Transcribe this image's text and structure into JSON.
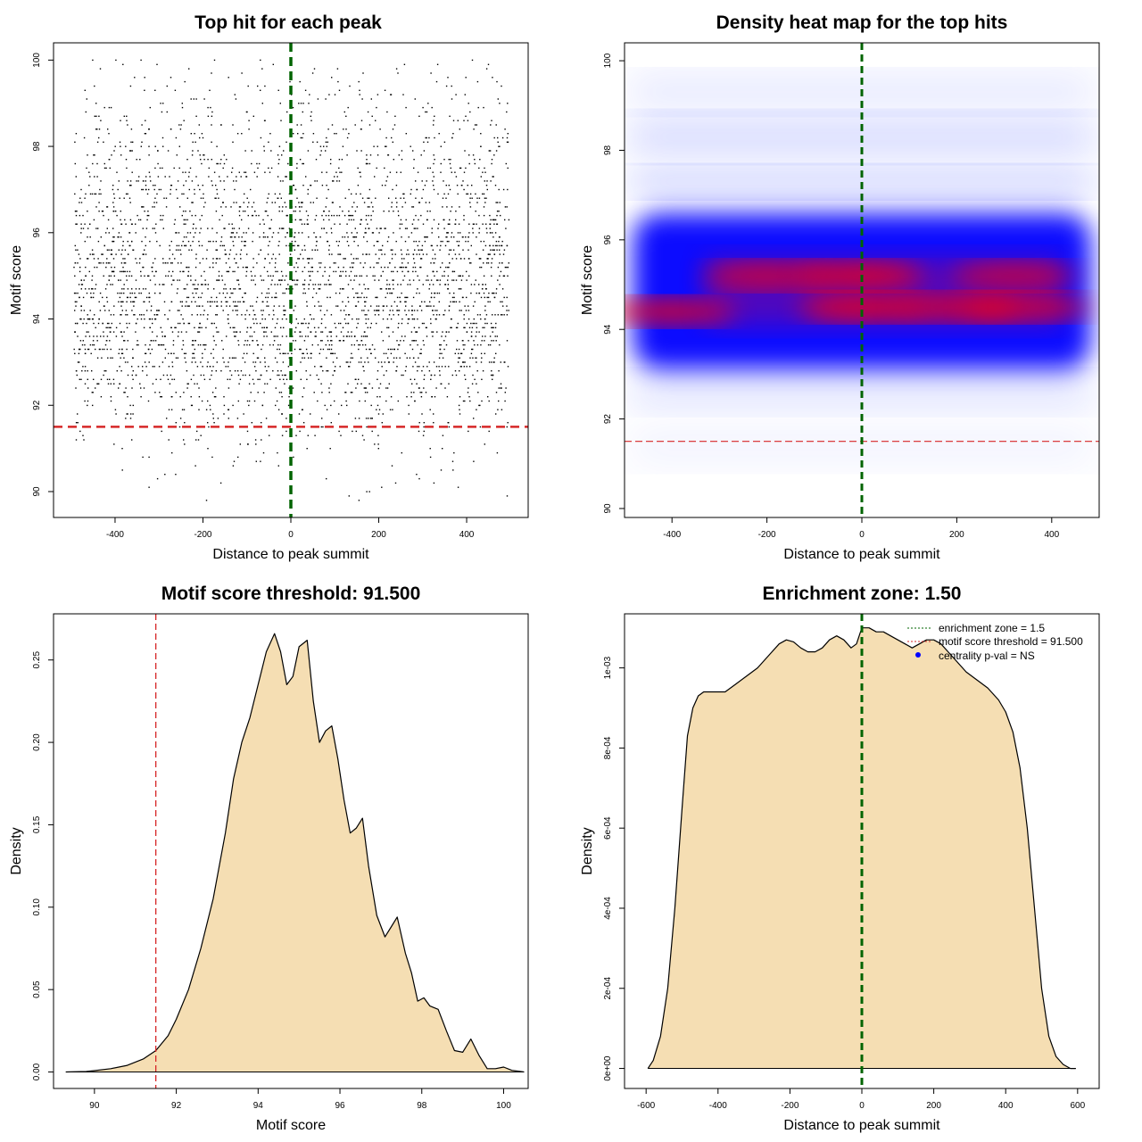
{
  "chart_data": [
    {
      "id": "top-hits",
      "type": "scatter",
      "title": "Top hit for each peak",
      "xlabel": "Distance to peak summit",
      "ylabel": "Motif score",
      "xlim": [
        -540,
        540
      ],
      "ylim": [
        89.4,
        100.4
      ],
      "xticks": [
        -400,
        -200,
        0,
        200,
        400
      ],
      "yticks": [
        90,
        92,
        94,
        96,
        98,
        100
      ],
      "points_description_range": {
        "x": [
          -495,
          495
        ],
        "y": [
          89.8,
          100.0
        ]
      },
      "score_density_profile": {
        "x": [
          89.8,
          90.5,
          91,
          91.5,
          92,
          92.5,
          93,
          93.5,
          94,
          94.5,
          95,
          95.5,
          96,
          96.5,
          97,
          97.5,
          98,
          98.5,
          99,
          99.5,
          100
        ],
        "weight": [
          0.03,
          0.05,
          0.1,
          0.22,
          0.35,
          0.55,
          0.8,
          0.95,
          1.0,
          1.0,
          1.0,
          0.95,
          0.85,
          0.7,
          0.55,
          0.45,
          0.35,
          0.28,
          0.2,
          0.12,
          0.08
        ]
      },
      "ref_lines": {
        "vertical_x": 0,
        "vertical_color": "#006400",
        "horizontal_y": 91.5,
        "horizontal_color": "#d62728"
      }
    },
    {
      "id": "density-heatmap",
      "type": "heatmap",
      "title": "Density heat map for the top hits",
      "xlabel": "Distance to peak summit",
      "ylabel": "Motif score",
      "xlim": [
        -500,
        500
      ],
      "ylim": [
        89.8,
        100.4
      ],
      "xticks": [
        -400,
        -200,
        0,
        200,
        400
      ],
      "yticks": [
        90,
        92,
        94,
        96,
        98,
        100
      ],
      "color_scale": [
        "#ffffff",
        "#0000ff",
        "#ff0000"
      ],
      "hotspots": [
        {
          "x": -400,
          "y": 94.4,
          "intensity": 0.85
        },
        {
          "x": -200,
          "y": 95.2,
          "intensity": 0.8
        },
        {
          "x": 0,
          "y": 95.2,
          "intensity": 0.95
        },
        {
          "x": 0,
          "y": 94.5,
          "intensity": 0.95
        },
        {
          "x": 200,
          "y": 94.5,
          "intensity": 0.85
        },
        {
          "x": 320,
          "y": 95.2,
          "intensity": 0.75
        },
        {
          "x": 350,
          "y": 94.5,
          "intensity": 0.8
        }
      ],
      "ref_lines": {
        "vertical_x": 0,
        "vertical_color": "#006400",
        "horizontal_y": 91.5,
        "horizontal_color": "#d62728"
      }
    },
    {
      "id": "score-density",
      "type": "area",
      "title": "Motif score threshold: 91.500",
      "xlabel": "Motif score",
      "ylabel": "Density",
      "xlim": [
        89,
        100.6
      ],
      "ylim": [
        -0.01,
        0.278
      ],
      "xticks": [
        90,
        92,
        94,
        96,
        98,
        100
      ],
      "yticks": [
        0,
        0.05,
        0.1,
        0.15,
        0.2,
        0.25
      ],
      "ytick_labels": [
        "0.00",
        "0.05",
        "0.10",
        "0.15",
        "0.20",
        "0.25"
      ],
      "x": [
        89.3,
        89.8,
        90.0,
        90.4,
        90.8,
        91.2,
        91.5,
        91.8,
        92.0,
        92.3,
        92.6,
        92.9,
        93.2,
        93.4,
        93.6,
        93.8,
        94.0,
        94.2,
        94.4,
        94.55,
        94.7,
        94.85,
        95.0,
        95.2,
        95.35,
        95.5,
        95.65,
        95.8,
        95.95,
        96.1,
        96.25,
        96.4,
        96.55,
        96.7,
        96.9,
        97.1,
        97.25,
        97.4,
        97.6,
        97.75,
        97.9,
        98.05,
        98.2,
        98.4,
        98.6,
        98.8,
        99.0,
        99.2,
        99.4,
        99.6,
        99.8,
        100.0,
        100.2,
        100.5
      ],
      "y": [
        0.0,
        0.0003,
        0.0008,
        0.002,
        0.004,
        0.008,
        0.013,
        0.022,
        0.032,
        0.05,
        0.075,
        0.105,
        0.145,
        0.178,
        0.2,
        0.215,
        0.235,
        0.255,
        0.266,
        0.255,
        0.235,
        0.24,
        0.258,
        0.262,
        0.225,
        0.2,
        0.207,
        0.21,
        0.19,
        0.165,
        0.145,
        0.148,
        0.154,
        0.125,
        0.095,
        0.082,
        0.088,
        0.094,
        0.072,
        0.06,
        0.043,
        0.045,
        0.04,
        0.038,
        0.025,
        0.013,
        0.012,
        0.02,
        0.01,
        0.002,
        0.002,
        0.003,
        0.001,
        0.0
      ],
      "fill": "#f5deb3",
      "threshold_x": 91.5,
      "threshold_color": "#d62728"
    },
    {
      "id": "distance-density",
      "type": "area",
      "title": "Enrichment zone: 1.50",
      "xlabel": "Distance to peak summit",
      "ylabel": "Density",
      "xlim": [
        -660,
        660
      ],
      "ylim": [
        -5e-05,
        0.001135
      ],
      "xticks": [
        -600,
        -400,
        -200,
        0,
        200,
        400,
        600
      ],
      "yticks": [
        0,
        0.0002,
        0.0004,
        0.0006,
        0.0008,
        0.001
      ],
      "ytick_labels": [
        "0e+00",
        "2e-04",
        "4e-04",
        "6e-04",
        "8e-04",
        "1e-03"
      ],
      "x": [
        -595,
        -580,
        -560,
        -540,
        -520,
        -500,
        -485,
        -470,
        -455,
        -440,
        -420,
        -400,
        -380,
        -350,
        -320,
        -290,
        -260,
        -230,
        -210,
        -190,
        -170,
        -150,
        -130,
        -110,
        -90,
        -70,
        -50,
        -30,
        -15,
        0,
        20,
        40,
        60,
        80,
        100,
        120,
        140,
        160,
        180,
        200,
        220,
        240,
        260,
        290,
        320,
        350,
        380,
        400,
        420,
        440,
        460,
        480,
        500,
        520,
        540,
        560,
        580,
        595
      ],
      "y": [
        0.0,
        2e-05,
        8e-05,
        0.0002,
        0.0004,
        0.00065,
        0.00083,
        0.0009,
        0.00093,
        0.00094,
        0.00094,
        0.00094,
        0.00094,
        0.00096,
        0.00098,
        0.001,
        0.00103,
        0.00106,
        0.00107,
        0.001065,
        0.00105,
        0.00104,
        0.00104,
        0.00105,
        0.00107,
        0.00108,
        0.00107,
        0.00105,
        0.00106,
        0.0011,
        0.0011,
        0.00109,
        0.00109,
        0.00108,
        0.00107,
        0.00106,
        0.00105,
        0.00106,
        0.00107,
        0.00107,
        0.00106,
        0.00104,
        0.00102,
        0.00099,
        0.00097,
        0.00095,
        0.00092,
        0.00089,
        0.00084,
        0.00075,
        0.0006,
        0.0004,
        0.0002,
        8e-05,
        3e-05,
        1e-05,
        0.0,
        0.0
      ],
      "fill": "#f5deb3",
      "center_line_x": 0,
      "center_line_color": "#006400",
      "legend": [
        {
          "label": "enrichment zone = 1.5",
          "color": "#006400",
          "style": "dotted"
        },
        {
          "label": "motif score threshold = 91.500",
          "color": "#d62728",
          "style": "dotted"
        },
        {
          "label": "centrality p-val = NS",
          "color": "#0000ff",
          "style": "point"
        }
      ]
    }
  ]
}
